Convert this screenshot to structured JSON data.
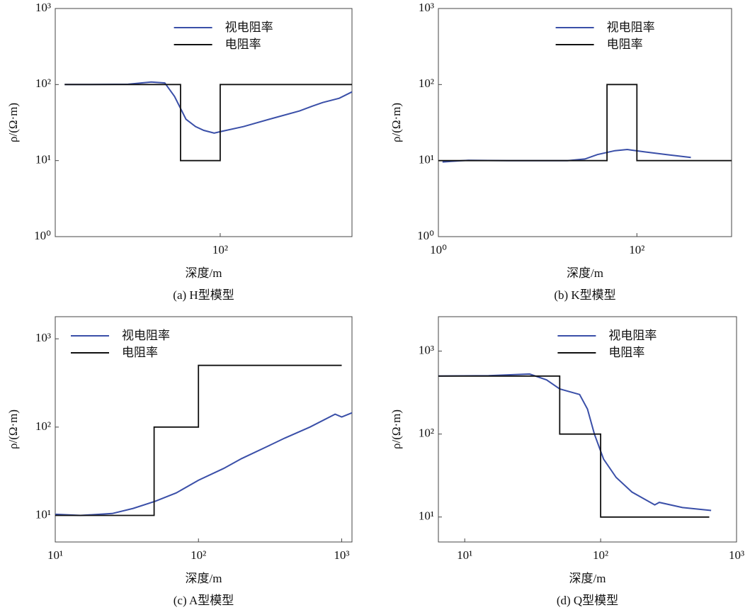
{
  "chart_data": [
    {
      "type": "line",
      "xscale": "log",
      "yscale": "log",
      "legend": "upper right",
      "xlabel": "深度/m",
      "ylabel": "ρ/(Ω·m)",
      "caption": "(a) H型模型",
      "xlim": [
        5.6,
        1000
      ],
      "ylim": [
        1,
        1000
      ],
      "xticks": [
        {
          "value": 100,
          "label": "10²"
        }
      ],
      "yticks": [
        {
          "value": 1,
          "label": "10⁰"
        },
        {
          "value": 10,
          "label": "10¹"
        },
        {
          "value": 100,
          "label": "10²"
        },
        {
          "value": 1000,
          "label": "10³"
        }
      ],
      "series": [
        {
          "name": "视电阻率",
          "color": "#3a4fa8",
          "x": [
            6.6,
            10,
            20,
            30,
            38,
            45,
            55,
            65,
            75,
            90,
            100,
            150,
            250,
            400,
            500,
            600,
            800,
            1000
          ],
          "values": [
            100,
            100,
            101,
            108,
            105,
            70,
            35,
            28,
            25,
            23,
            24,
            28,
            36,
            45,
            52,
            58,
            66,
            80
          ]
        },
        {
          "name": "电阻率",
          "color": "#111111",
          "x": [
            6.6,
            50,
            50,
            100,
            100,
            1000
          ],
          "values": [
            100,
            100,
            10,
            10,
            100,
            100
          ]
        }
      ]
    },
    {
      "type": "line",
      "xscale": "log",
      "yscale": "log",
      "legend": "upper right",
      "xlabel": "深度/m",
      "ylabel": "ρ/(Ω·m)",
      "caption": "(b) K型模型",
      "xlim": [
        1,
        900
      ],
      "ylim": [
        1,
        1000
      ],
      "xticks": [
        {
          "value": 1,
          "label": "10⁰"
        },
        {
          "value": 100,
          "label": "10²"
        }
      ],
      "yticks": [
        {
          "value": 1,
          "label": "10⁰"
        },
        {
          "value": 10,
          "label": "10¹"
        },
        {
          "value": 100,
          "label": "10²"
        },
        {
          "value": 1000,
          "label": "10³"
        }
      ],
      "series": [
        {
          "name": "视电阻率",
          "color": "#3a4fa8",
          "x": [
            1.1,
            2,
            5,
            10,
            20,
            30,
            40,
            60,
            80,
            120,
            200,
            350
          ],
          "values": [
            9.6,
            10.1,
            10,
            10,
            10,
            10.5,
            12,
            13.5,
            14,
            13,
            12,
            11
          ]
        },
        {
          "name": "电阻率",
          "color": "#111111",
          "x": [
            1,
            50,
            50,
            100,
            100,
            900
          ],
          "values": [
            10,
            10,
            100,
            100,
            10,
            10
          ]
        }
      ]
    },
    {
      "type": "line",
      "xscale": "log",
      "yscale": "log",
      "legend": "upper left",
      "xlabel": "深度/m",
      "ylabel": "ρ/(Ω·m)",
      "caption": "(c) A型模型",
      "xlim": [
        10,
        1180
      ],
      "ylim": [
        5,
        1780
      ],
      "xticks": [
        {
          "value": 10,
          "label": "10¹"
        },
        {
          "value": 100,
          "label": "10²"
        },
        {
          "value": 1000,
          "label": "10³"
        }
      ],
      "yticks": [
        {
          "value": 10,
          "label": "10¹"
        },
        {
          "value": 100,
          "label": "10²"
        },
        {
          "value": 1000,
          "label": "10³"
        }
      ],
      "series": [
        {
          "name": "视电阻率",
          "color": "#3a4fa8",
          "x": [
            10,
            15,
            25,
            35,
            50,
            70,
            100,
            150,
            200,
            300,
            400,
            600,
            900,
            1000,
            1180
          ],
          "values": [
            10.3,
            10,
            10.5,
            12,
            14.5,
            18,
            25,
            34,
            44,
            60,
            75,
            100,
            140,
            130,
            145
          ]
        },
        {
          "name": "电阻率",
          "color": "#111111",
          "x": [
            10,
            49,
            49,
            100,
            100,
            1000
          ],
          "values": [
            10,
            10,
            100,
            100,
            500,
            500
          ]
        }
      ]
    },
    {
      "type": "line",
      "xscale": "log",
      "yscale": "log",
      "legend": "upper right",
      "xlabel": "深度/m",
      "ylabel": "ρ/(Ω·m)",
      "caption": "(d) Q型模型",
      "xlim": [
        6.4,
        1000
      ],
      "ylim": [
        5,
        2600
      ],
      "xticks": [
        {
          "value": 10,
          "label": "10¹"
        },
        {
          "value": 100,
          "label": "10²"
        },
        {
          "value": 1000,
          "label": "10³"
        }
      ],
      "yticks": [
        {
          "value": 10,
          "label": "10¹"
        },
        {
          "value": 100,
          "label": "10²"
        },
        {
          "value": 1000,
          "label": "10³"
        }
      ],
      "series": [
        {
          "name": "视电阻率",
          "color": "#3a4fa8",
          "x": [
            6.4,
            15,
            30,
            40,
            50,
            70,
            80,
            90,
            105,
            130,
            170,
            250,
            270,
            400,
            650
          ],
          "values": [
            500,
            505,
            530,
            450,
            350,
            300,
            200,
            100,
            50,
            30,
            20,
            14,
            15,
            13,
            12
          ]
        },
        {
          "name": "电阻率",
          "color": "#111111",
          "x": [
            6.4,
            50,
            50,
            100,
            100,
            630
          ],
          "values": [
            500,
            500,
            100,
            100,
            10,
            10
          ]
        }
      ]
    }
  ]
}
